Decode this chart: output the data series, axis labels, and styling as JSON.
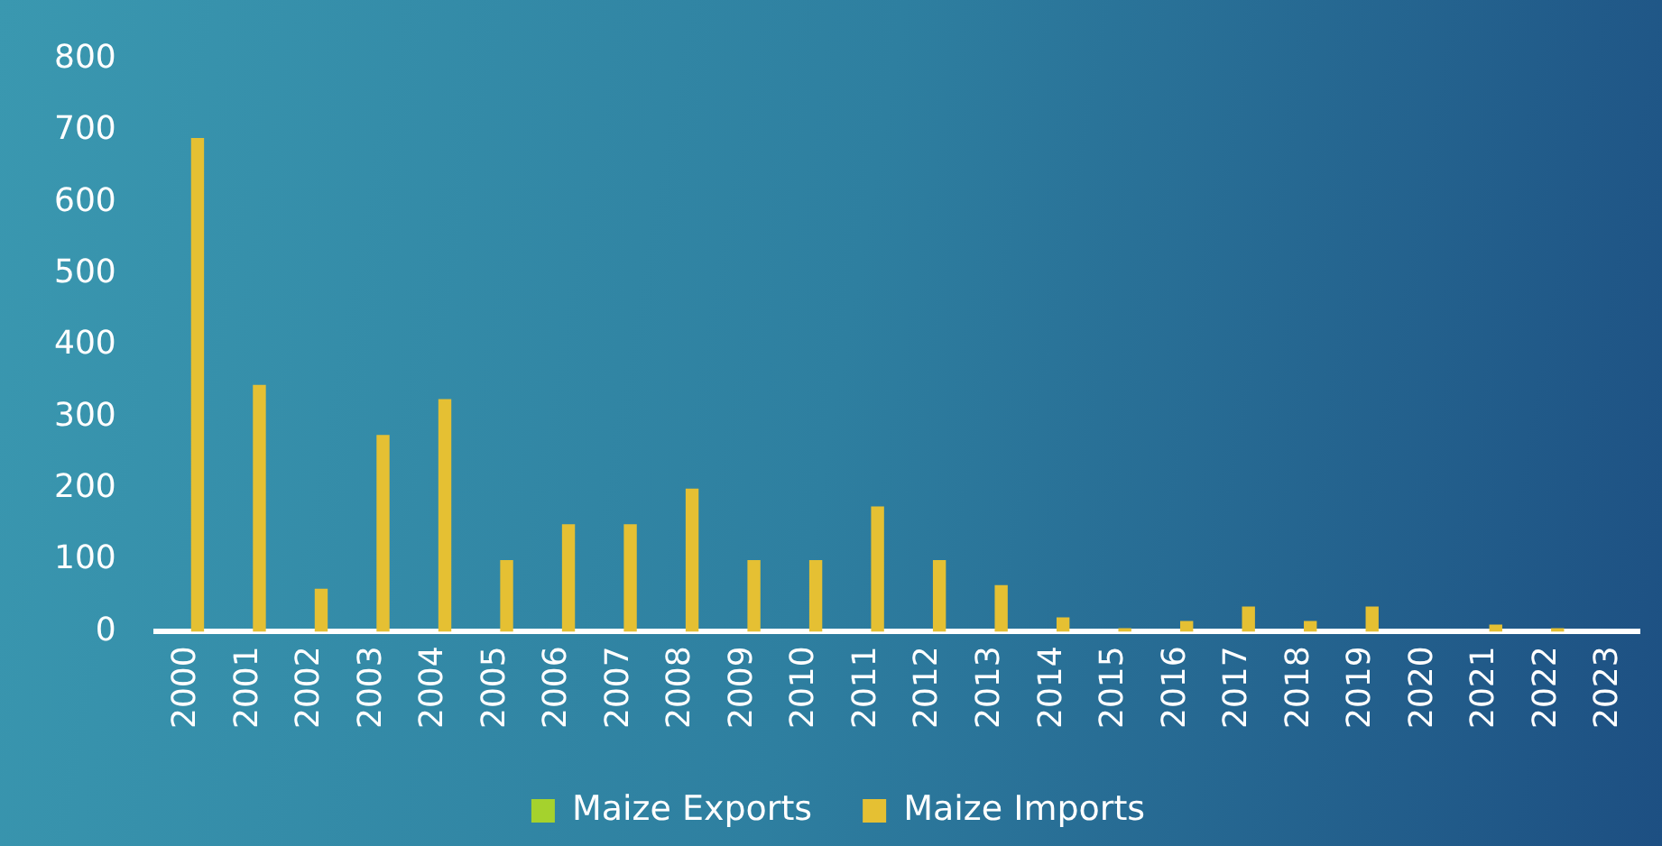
{
  "chart_data": {
    "type": "bar",
    "categories": [
      "2000",
      "2001",
      "2002",
      "2003",
      "2004",
      "2005",
      "2006",
      "2007",
      "2008",
      "2009",
      "2010",
      "2011",
      "2012",
      "2013",
      "2014",
      "2015",
      "2016",
      "2017",
      "2018",
      "2019",
      "2020",
      "2021",
      "2022",
      "2023"
    ],
    "series": [
      {
        "name": "Maize Exports",
        "color": "#a5d22d",
        "values": [
          0,
          0,
          0,
          0,
          0,
          0,
          0,
          0,
          0,
          0,
          0,
          0,
          0,
          0,
          0,
          0,
          0,
          0,
          0,
          0,
          0,
          0,
          0,
          0
        ]
      },
      {
        "name": "Maize Imports",
        "color": "#e5c033",
        "values": [
          690,
          345,
          60,
          275,
          325,
          100,
          150,
          150,
          200,
          100,
          100,
          175,
          100,
          65,
          20,
          5,
          15,
          35,
          15,
          35,
          0,
          10,
          5,
          0
        ]
      }
    ],
    "ylim": [
      0,
      800
    ],
    "yticks": [
      0,
      100,
      200,
      300,
      400,
      500,
      600,
      700,
      800
    ],
    "grid": false,
    "legend": "bottom"
  }
}
